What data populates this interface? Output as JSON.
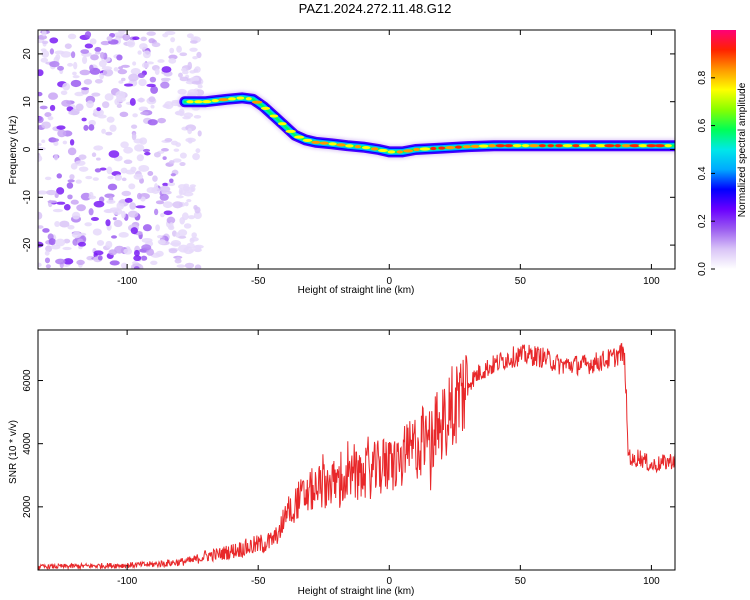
{
  "title": "PAZ1.2024.272.11.48.G12",
  "chart_data": [
    {
      "type": "heatmap",
      "xlabel": "Height of straight line (km)",
      "ylabel": "Frequency (Hz)",
      "xlim": [
        -134,
        109
      ],
      "ylim": [
        -25,
        25
      ],
      "xticks": [
        "-100",
        "-50",
        "0",
        "50",
        "100"
      ],
      "yticks": [
        "-20",
        "-10",
        "0",
        "10",
        "20"
      ],
      "colorbar": {
        "label": "Normalized spectral amplitude",
        "range": [
          0,
          1
        ],
        "ticks": [
          "0.0",
          "0.2",
          "0.4",
          "0.6",
          "0.8"
        ],
        "colors": [
          "#ffffff",
          "#d9c4f7",
          "#9b5cf0",
          "#6a00ff",
          "#0000ff",
          "#00aaff",
          "#00e8e8",
          "#00ff55",
          "#88ff00",
          "#ffff00",
          "#ff9900",
          "#ff2200",
          "#ff0077"
        ]
      },
      "ridge": {
        "height_km": [
          -78,
          -70,
          -62,
          -56,
          -52,
          -48,
          -44,
          -40,
          -36,
          -32,
          -28,
          -22,
          -16,
          -10,
          -4,
          0,
          5,
          10,
          20,
          30,
          40,
          50,
          60,
          70,
          80,
          90,
          100,
          109
        ],
        "frequency_hz": [
          10,
          10,
          10.5,
          10.8,
          10.5,
          9,
          7,
          5,
          3,
          2,
          1.5,
          1.2,
          0.8,
          0.5,
          0,
          -0.5,
          -0.5,
          0,
          0.3,
          0.6,
          0.8,
          0.8,
          0.8,
          0.8,
          0.8,
          0.8,
          0.8,
          0.8
        ]
      },
      "noise_region_km": [
        -134,
        -78
      ]
    },
    {
      "type": "line",
      "xlabel": "Height of straight line (km)",
      "ylabel": "SNR (10 * v/v)",
      "xlim": [
        -134,
        109
      ],
      "ylim": [
        0,
        7600
      ],
      "xticks": [
        "-100",
        "-50",
        "0",
        "50",
        "100"
      ],
      "yticks": [
        "2000",
        "4000",
        "6000"
      ],
      "color": "#e8282a",
      "series": [
        {
          "x": [
            -134,
            -120,
            -100,
            -90,
            -80,
            -75,
            -70,
            -65,
            -60,
            -55,
            -50,
            -45,
            -42,
            -40,
            -38,
            -35,
            -30,
            -25,
            -20,
            -15,
            -10,
            -5,
            0,
            5,
            10,
            15,
            20,
            25,
            30,
            35,
            40,
            45,
            50,
            55,
            60,
            65,
            70,
            75,
            80,
            85,
            89,
            90,
            91,
            93,
            95,
            100,
            105,
            109
          ],
          "y": [
            100,
            120,
            150,
            180,
            250,
            300,
            450,
            500,
            600,
            700,
            800,
            900,
            1200,
            1700,
            1900,
            2200,
            2500,
            2700,
            2800,
            2900,
            3000,
            3200,
            3300,
            3500,
            3900,
            4200,
            4600,
            5300,
            5900,
            6300,
            6500,
            6700,
            6800,
            6800,
            6700,
            6500,
            6500,
            6500,
            6600,
            6700,
            6900,
            6500,
            3800,
            3400,
            3600,
            3300,
            3400,
            3500
          ]
        }
      ]
    }
  ]
}
